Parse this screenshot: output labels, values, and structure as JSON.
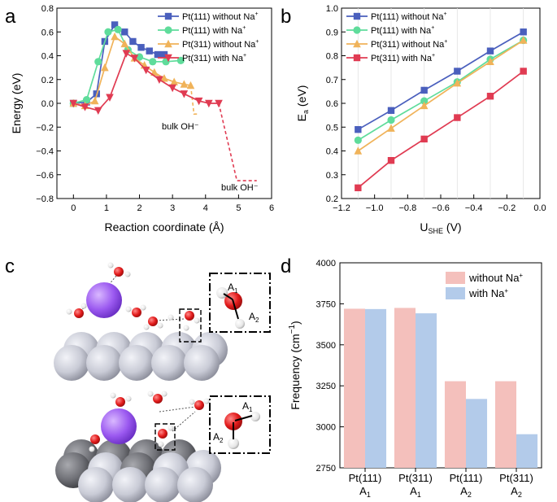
{
  "panels": {
    "a": "a",
    "b": "b",
    "c": "c",
    "d": "d"
  },
  "chart_data": [
    {
      "panel": "a",
      "type": "line",
      "xlabel": "Reaction coordinate (Å)",
      "ylabel": "Energy (eV)",
      "xlim": [
        -0.5,
        6
      ],
      "ylim": [
        -0.8,
        0.8
      ],
      "xticks": [
        0,
        1,
        2,
        3,
        4,
        5,
        6
      ],
      "yticks": [
        -0.8,
        -0.6,
        -0.4,
        -0.2,
        0.0,
        0.2,
        0.4,
        0.6,
        0.8
      ],
      "ytick_labels": [
        "−0.8",
        "−0.6",
        "−0.4",
        "−0.2",
        "0.0",
        "0.2",
        "0.4",
        "0.6",
        "0.8"
      ],
      "legend_position": "top-right",
      "annotations": [
        {
          "text": "bulk OH⁻",
          "x": 3.5,
          "y": -0.15
        },
        {
          "text": "bulk OH⁻",
          "x": 5.05,
          "y": -0.72
        }
      ],
      "series": [
        {
          "name": "Pt(111) without Na⁺",
          "label_main": "Pt(111) without Na",
          "label_sup": "+",
          "color": "#4a5fbd",
          "marker": "square",
          "x": [
            0.0,
            0.4,
            0.7,
            0.95,
            1.25,
            1.55,
            1.8,
            2.05,
            2.3,
            2.55,
            2.75
          ],
          "y": [
            0.0,
            0.01,
            0.08,
            0.52,
            0.66,
            0.6,
            0.52,
            0.47,
            0.44,
            0.41,
            0.41
          ]
        },
        {
          "name": "Pt(111) with Na⁺",
          "label_main": "Pt(111) with Na",
          "label_sup": "+",
          "color": "#5fdc9b",
          "marker": "circle",
          "x": [
            0.0,
            0.4,
            0.75,
            1.05,
            1.35,
            1.65,
            2.0,
            2.4,
            2.8,
            3.25
          ],
          "y": [
            0.0,
            0.03,
            0.35,
            0.6,
            0.62,
            0.45,
            0.39,
            0.35,
            0.35,
            0.36
          ]
        },
        {
          "name": "Pt(311) without Na⁺",
          "label_main": "Pt(311) without Na",
          "label_sup": "+",
          "color": "#f0b35a",
          "marker": "triangle-up",
          "x": [
            0.0,
            0.35,
            0.65,
            0.95,
            1.25,
            1.55,
            1.85,
            2.15,
            2.45,
            2.75,
            3.05,
            3.35,
            3.55
          ],
          "y": [
            0.0,
            -0.02,
            0.02,
            0.3,
            0.56,
            0.5,
            0.38,
            0.32,
            0.26,
            0.21,
            0.18,
            0.16,
            0.15
          ]
        },
        {
          "name": "Pt(311) with Na⁺",
          "label_main": "Pt(311) with Na",
          "label_sup": "+",
          "color": "#e03b52",
          "marker": "triangle-down",
          "x": [
            0.0,
            0.35,
            0.75,
            1.1,
            1.6,
            1.85,
            2.2,
            2.6,
            3.0,
            3.35,
            3.8,
            4.1,
            4.4
          ],
          "y": [
            0.0,
            -0.03,
            -0.06,
            0.05,
            0.42,
            0.38,
            0.28,
            0.2,
            0.13,
            0.08,
            0.02,
            0.0,
            0.0
          ]
        }
      ],
      "extensions": [
        {
          "color": "#f0b35a",
          "style": "dashed",
          "x": [
            3.55,
            3.65,
            3.78
          ],
          "y": [
            0.15,
            -0.09,
            -0.09
          ]
        },
        {
          "color": "#e03b52",
          "style": "dashed",
          "x": [
            4.4,
            4.95,
            5.55
          ],
          "y": [
            0.0,
            -0.65,
            -0.65
          ]
        }
      ]
    },
    {
      "panel": "b",
      "type": "line",
      "xlabel_main": "U",
      "xlabel_sub": "SHE",
      "xlabel_unit": " (V)",
      "ylabel_main": "E",
      "ylabel_sub": "a",
      "ylabel_unit": " (eV)",
      "xlim": [
        -1.2,
        0.0
      ],
      "ylim": [
        0.2,
        1.0
      ],
      "xticks": [
        -1.2,
        -1.0,
        -0.8,
        -0.6,
        -0.4,
        -0.2,
        0.0
      ],
      "xtick_labels": [
        "−1.2",
        "−1.0",
        "−0.8",
        "−0.6",
        "−0.4",
        "−0.2",
        "0.0"
      ],
      "yticks": [
        0.2,
        0.3,
        0.4,
        0.5,
        0.6,
        0.7,
        0.8,
        0.9,
        1.0
      ],
      "grid": "vertical",
      "legend_position": "top-left",
      "x": [
        -1.1,
        -0.9,
        -0.7,
        -0.5,
        -0.3,
        -0.1
      ],
      "series": [
        {
          "name": "Pt(111) without Na⁺",
          "label_main": "Pt(111) without Na",
          "label_sup": "+",
          "color": "#4a5fbd",
          "marker": "square",
          "values": [
            0.49,
            0.57,
            0.655,
            0.735,
            0.82,
            0.9
          ]
        },
        {
          "name": "Pt(111) with Na⁺",
          "label_main": "Pt(111) with Na",
          "label_sup": "+",
          "color": "#5fdc9b",
          "marker": "circle",
          "values": [
            0.445,
            0.53,
            0.61,
            0.69,
            0.785,
            0.865
          ]
        },
        {
          "name": "Pt(311) without Na⁺",
          "label_main": "Pt(311) without Na",
          "label_sup": "+",
          "color": "#f0b35a",
          "marker": "triangle-up",
          "values": [
            0.4,
            0.495,
            0.59,
            0.685,
            0.775,
            0.865
          ]
        },
        {
          "name": "Pt(311) with Na⁺",
          "label_main": "Pt(311) with Na",
          "label_sup": "+",
          "color": "#e03b52",
          "marker": "square",
          "values": [
            0.245,
            0.36,
            0.45,
            0.54,
            0.63,
            0.735
          ]
        }
      ]
    },
    {
      "panel": "d",
      "type": "bar",
      "ylabel_main": "Frequency (cm",
      "ylabel_sup": "−1",
      "ylabel_close": ")",
      "ylim": [
        2750,
        4000
      ],
      "yticks": [
        2750,
        3000,
        3250,
        3500,
        3750,
        4000
      ],
      "legend_position": "top-right",
      "categories": [
        {
          "top": "Pt(111)",
          "main": "A",
          "sub": "1"
        },
        {
          "top": "Pt(311)",
          "main": "A",
          "sub": "1"
        },
        {
          "top": "Pt(111)",
          "main": "A",
          "sub": "2"
        },
        {
          "top": "Pt(311)",
          "main": "A",
          "sub": "2"
        }
      ],
      "series": [
        {
          "name": "without Na⁺",
          "label_main": "without Na",
          "label_sup": "+",
          "color": "#f4c0bc",
          "values": [
            3720,
            3725,
            3278,
            3278
          ]
        },
        {
          "name": "with Na⁺",
          "label_main": "with Na",
          "label_sup": "+",
          "color": "#b3cbea",
          "values": [
            3718,
            3692,
            3170,
            2955
          ]
        }
      ]
    }
  ],
  "structures": {
    "upper_labels": [
      {
        "main": "A",
        "sub": "1"
      },
      {
        "main": "A",
        "sub": "2"
      }
    ],
    "lower_labels": [
      {
        "main": "A",
        "sub": "1"
      },
      {
        "main": "A",
        "sub": "2"
      }
    ],
    "colors": {
      "sodium": "#9b59f0",
      "oxygen": "#e21b1b",
      "hydrogen": "#e8e8e8",
      "pt_light": "#c9cbd6",
      "pt_dark": "#6f7076"
    }
  }
}
